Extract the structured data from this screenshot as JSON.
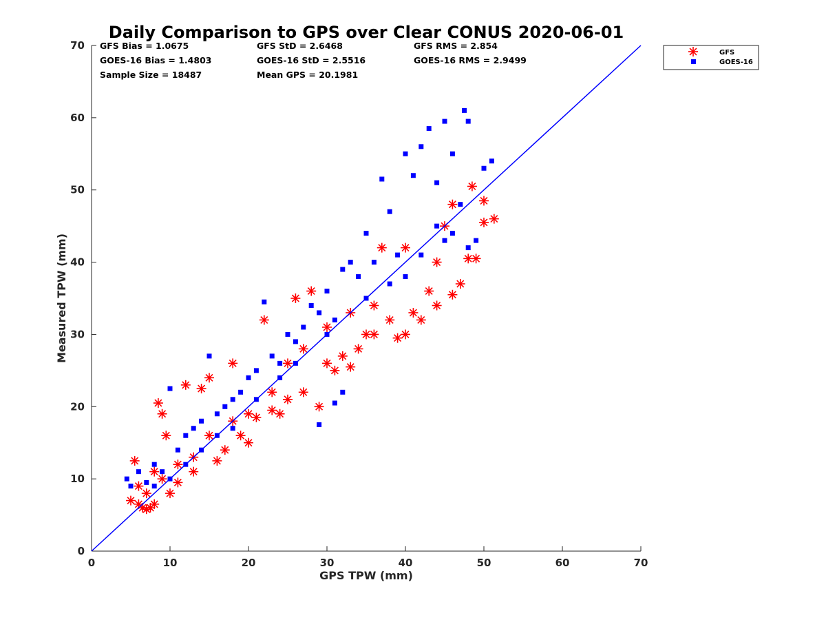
{
  "chart_data": {
    "type": "scatter",
    "title": "Daily Comparison to GPS over Clear CONUS 2020-06-01",
    "xlabel": "GPS TPW (mm)",
    "ylabel": "Measured TPW (mm)",
    "xlim": [
      0,
      70
    ],
    "ylim": [
      0,
      70
    ],
    "xticks": [
      "0",
      "10",
      "20",
      "30",
      "40",
      "50",
      "60",
      "70"
    ],
    "yticks": [
      "0",
      "10",
      "20",
      "30",
      "40",
      "50",
      "60",
      "70"
    ],
    "grid": false,
    "legend_position": "outside-top-right",
    "reference_line": {
      "name": "1:1 line",
      "x": [
        0,
        70
      ],
      "y": [
        0,
        70
      ],
      "color": "#0000ff"
    },
    "stats": {
      "gfs_bias": "GFS Bias = 1.0675",
      "gfs_std": "GFS StD = 2.6468",
      "gfs_rms": "GFS RMS = 2.854",
      "goes_bias": "GOES-16 Bias = 1.4803",
      "goes_std": "GOES-16 StD = 2.5516",
      "goes_rms": "GOES-16 RMS = 2.9499",
      "sample_size": "Sample Size = 18487",
      "mean_gps": "Mean GPS = 20.1981"
    },
    "series": [
      {
        "name": "GFS",
        "marker": "asterisk",
        "color": "#ff0000",
        "points": [
          [
            5,
            7
          ],
          [
            5.5,
            12.5
          ],
          [
            6,
            6.5
          ],
          [
            6.5,
            6
          ],
          [
            7,
            5.8
          ],
          [
            7.5,
            6
          ],
          [
            8,
            6.5
          ],
          [
            8.5,
            20.5
          ],
          [
            9,
            19
          ],
          [
            9.5,
            16
          ],
          [
            10,
            8
          ],
          [
            11,
            9.5
          ],
          [
            12,
            23
          ],
          [
            13,
            11
          ],
          [
            14,
            22.5
          ],
          [
            15,
            24
          ],
          [
            16,
            12.5
          ],
          [
            17,
            14
          ],
          [
            18,
            26
          ],
          [
            19,
            16
          ],
          [
            20,
            15
          ],
          [
            21,
            18.5
          ],
          [
            22,
            32
          ],
          [
            23,
            19.5
          ],
          [
            24,
            19
          ],
          [
            25,
            21
          ],
          [
            26,
            35
          ],
          [
            27,
            22
          ],
          [
            28,
            36
          ],
          [
            29,
            20
          ],
          [
            30,
            26
          ],
          [
            31,
            25
          ],
          [
            32,
            27
          ],
          [
            33,
            25.5
          ],
          [
            34,
            28
          ],
          [
            35,
            30
          ],
          [
            36,
            30
          ],
          [
            37,
            42
          ],
          [
            38,
            32
          ],
          [
            39,
            29.5
          ],
          [
            40,
            30
          ],
          [
            41,
            33
          ],
          [
            42,
            32
          ],
          [
            43,
            36
          ],
          [
            44,
            34
          ],
          [
            45,
            45
          ],
          [
            46,
            35.5
          ],
          [
            47,
            37
          ],
          [
            48,
            40.5
          ],
          [
            48.5,
            50.5
          ],
          [
            49,
            40.5
          ],
          [
            50,
            45.5
          ],
          [
            50,
            48.5
          ],
          [
            51.3,
            46
          ],
          [
            46,
            48
          ],
          [
            44,
            40
          ],
          [
            40,
            42
          ],
          [
            36,
            34
          ],
          [
            33,
            33
          ],
          [
            30,
            31
          ],
          [
            27,
            28
          ],
          [
            25,
            26
          ],
          [
            23,
            22
          ],
          [
            20,
            19
          ],
          [
            18,
            18
          ],
          [
            15,
            16
          ],
          [
            13,
            13
          ],
          [
            11,
            12
          ],
          [
            9,
            10
          ],
          [
            7,
            8
          ],
          [
            6,
            9
          ],
          [
            8,
            11
          ]
        ]
      },
      {
        "name": "GOES-16",
        "marker": "square",
        "color": "#0000ff",
        "points": [
          [
            4.5,
            10
          ],
          [
            5,
            9
          ],
          [
            6,
            11
          ],
          [
            7,
            9.5
          ],
          [
            8,
            12
          ],
          [
            9,
            11
          ],
          [
            10,
            22.5
          ],
          [
            11,
            14
          ],
          [
            12,
            16
          ],
          [
            13,
            17
          ],
          [
            14,
            18
          ],
          [
            15,
            27
          ],
          [
            16,
            19
          ],
          [
            17,
            20
          ],
          [
            18,
            21
          ],
          [
            19,
            22
          ],
          [
            20,
            24
          ],
          [
            21,
            25
          ],
          [
            22,
            34.5
          ],
          [
            23,
            27
          ],
          [
            24,
            26
          ],
          [
            25,
            30
          ],
          [
            26,
            29
          ],
          [
            27,
            31
          ],
          [
            28,
            34
          ],
          [
            29,
            33
          ],
          [
            30,
            36
          ],
          [
            31,
            32
          ],
          [
            32,
            39
          ],
          [
            33,
            40
          ],
          [
            34,
            38
          ],
          [
            35,
            44
          ],
          [
            36,
            40
          ],
          [
            37,
            51.5
          ],
          [
            38,
            47
          ],
          [
            39,
            41
          ],
          [
            40,
            55
          ],
          [
            41,
            52
          ],
          [
            42,
            56
          ],
          [
            43,
            58.5
          ],
          [
            44,
            51
          ],
          [
            45,
            59.5
          ],
          [
            46,
            55
          ],
          [
            47,
            48
          ],
          [
            47.5,
            61
          ],
          [
            48,
            59.5
          ],
          [
            49,
            43
          ],
          [
            50,
            53
          ],
          [
            51,
            54
          ],
          [
            32,
            22
          ],
          [
            31,
            20.5
          ],
          [
            29,
            17.5
          ],
          [
            26,
            26
          ],
          [
            24,
            24
          ],
          [
            21,
            21
          ],
          [
            18,
            17
          ],
          [
            16,
            16
          ],
          [
            14,
            14
          ],
          [
            12,
            12
          ],
          [
            10,
            10
          ],
          [
            8,
            9
          ],
          [
            30,
            30
          ],
          [
            35,
            35
          ],
          [
            40,
            38
          ],
          [
            45,
            43
          ],
          [
            38,
            37
          ],
          [
            42,
            41
          ],
          [
            44,
            45
          ],
          [
            46,
            44
          ],
          [
            48,
            42
          ]
        ]
      }
    ]
  }
}
